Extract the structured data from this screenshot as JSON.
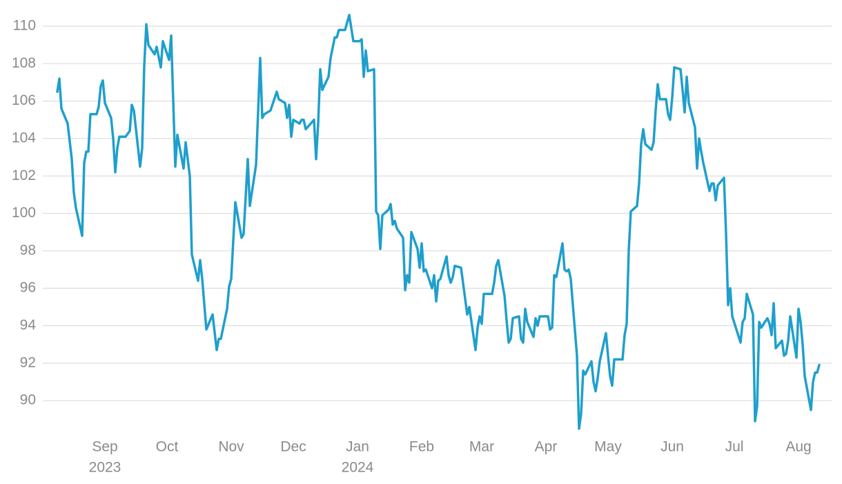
{
  "chart_data": {
    "type": "line",
    "color": "#1f9fcc",
    "grid": true,
    "ylim": [
      88.3,
      110.8
    ],
    "yticks": [
      90,
      92,
      94,
      96,
      98,
      100,
      102,
      104,
      106,
      108,
      110
    ],
    "xlim": [
      "2023-08-07",
      "2024-08-13"
    ],
    "xticks": [
      {
        "value": "2023-09-01",
        "label": "Sep"
      },
      {
        "value": "2023-10-01",
        "label": "Oct"
      },
      {
        "value": "2023-11-01",
        "label": "Nov"
      },
      {
        "value": "2023-12-01",
        "label": "Dec"
      },
      {
        "value": "2024-01-01",
        "label": "Jan"
      },
      {
        "value": "2024-02-01",
        "label": "Feb"
      },
      {
        "value": "2024-03-01",
        "label": "Mar"
      },
      {
        "value": "2024-04-01",
        "label": "Apr"
      },
      {
        "value": "2024-05-01",
        "label": "May"
      },
      {
        "value": "2024-06-01",
        "label": "Jun"
      },
      {
        "value": "2024-07-01",
        "label": "Jul"
      },
      {
        "value": "2024-08-01",
        "label": "Aug"
      }
    ],
    "xtick_years": [
      {
        "value": "2023-09-01",
        "label": "2023"
      },
      {
        "value": "2024-01-01",
        "label": "2024"
      }
    ],
    "x": [
      "2023-08-09",
      "2023-08-10",
      "2023-08-11",
      "2023-08-14",
      "2023-08-16",
      "2023-08-17",
      "2023-08-18",
      "2023-08-21",
      "2023-08-22",
      "2023-08-23",
      "2023-08-24",
      "2023-08-25",
      "2023-08-28",
      "2023-08-29",
      "2023-08-30",
      "2023-08-31",
      "2023-09-01",
      "2023-09-04",
      "2023-09-05",
      "2023-09-06",
      "2023-09-07",
      "2023-09-08",
      "2023-09-11",
      "2023-09-13",
      "2023-09-14",
      "2023-09-15",
      "2023-09-18",
      "2023-09-19",
      "2023-09-20",
      "2023-09-21",
      "2023-09-22",
      "2023-09-25",
      "2023-09-26",
      "2023-09-28",
      "2023-09-29",
      "2023-10-02",
      "2023-10-03",
      "2023-10-05",
      "2023-10-06",
      "2023-10-09",
      "2023-10-10",
      "2023-10-12",
      "2023-10-13",
      "2023-10-16",
      "2023-10-17",
      "2023-10-18",
      "2023-10-20",
      "2023-10-23",
      "2023-10-25",
      "2023-10-26",
      "2023-10-27",
      "2023-10-30",
      "2023-10-31",
      "2023-11-01",
      "2023-11-03",
      "2023-11-06",
      "2023-11-07",
      "2023-11-09",
      "2023-11-10",
      "2023-11-13",
      "2023-11-15",
      "2023-11-16",
      "2023-11-17",
      "2023-11-20",
      "2023-11-23",
      "2023-11-24",
      "2023-11-27",
      "2023-11-28",
      "2023-11-29",
      "2023-11-30",
      "2023-12-01",
      "2023-12-04",
      "2023-12-05",
      "2023-12-06",
      "2023-12-07",
      "2023-12-11",
      "2023-12-12",
      "2023-12-13",
      "2023-12-14",
      "2023-12-15",
      "2023-12-18",
      "2023-12-19",
      "2023-12-21",
      "2023-12-22",
      "2023-12-23",
      "2023-12-26",
      "2023-12-28",
      "2023-12-30",
      "2024-01-02",
      "2024-01-03",
      "2024-01-04",
      "2024-01-05",
      "2024-01-06",
      "2024-01-09",
      "2024-01-10",
      "2024-01-11",
      "2024-01-12",
      "2024-01-13",
      "2024-01-16",
      "2024-01-17",
      "2024-01-18",
      "2024-01-19",
      "2024-01-20",
      "2024-01-23",
      "2024-01-24",
      "2024-01-25",
      "2024-01-26",
      "2024-01-27",
      "2024-01-30",
      "2024-01-31",
      "2024-02-01",
      "2024-02-02",
      "2024-02-03",
      "2024-02-06",
      "2024-02-07",
      "2024-02-08",
      "2024-02-09",
      "2024-02-10",
      "2024-02-13",
      "2024-02-14",
      "2024-02-15",
      "2024-02-16",
      "2024-02-17",
      "2024-02-20",
      "2024-02-23",
      "2024-02-24",
      "2024-02-27",
      "2024-02-28",
      "2024-02-29",
      "2024-03-01",
      "2024-03-02",
      "2024-03-05",
      "2024-03-06",
      "2024-03-07",
      "2024-03-08",
      "2024-03-09",
      "2024-03-12",
      "2024-03-13",
      "2024-03-14",
      "2024-03-15",
      "2024-03-16",
      "2024-03-19",
      "2024-03-20",
      "2024-03-21",
      "2024-03-22",
      "2024-03-23",
      "2024-03-26",
      "2024-03-27",
      "2024-03-28",
      "2024-03-29",
      "2024-04-02",
      "2024-04-03",
      "2024-04-04",
      "2024-04-05",
      "2024-04-06",
      "2024-04-09",
      "2024-04-10",
      "2024-04-11",
      "2024-04-12",
      "2024-04-13",
      "2024-04-16",
      "2024-04-17",
      "2024-04-18",
      "2024-04-19",
      "2024-04-20",
      "2024-04-23",
      "2024-04-24",
      "2024-04-25",
      "2024-04-26",
      "2024-04-27",
      "2024-04-30",
      "2024-05-01",
      "2024-05-02",
      "2024-05-03",
      "2024-05-04",
      "2024-05-07",
      "2024-05-08",
      "2024-05-09",
      "2024-05-10",
      "2024-05-11",
      "2024-05-12",
      "2024-05-15",
      "2024-05-16",
      "2024-05-17",
      "2024-05-18",
      "2024-05-19",
      "2024-05-22",
      "2024-05-23",
      "2024-05-24",
      "2024-05-25",
      "2024-05-26",
      "2024-05-29",
      "2024-05-30",
      "2024-05-31",
      "2024-06-01",
      "2024-06-02",
      "2024-06-05",
      "2024-06-06",
      "2024-06-07",
      "2024-06-08",
      "2024-06-09",
      "2024-06-12",
      "2024-06-13",
      "2024-06-14",
      "2024-06-15",
      "2024-06-16",
      "2024-06-19",
      "2024-06-20",
      "2024-06-21",
      "2024-06-22",
      "2024-06-23",
      "2024-06-26",
      "2024-06-27",
      "2024-06-28",
      "2024-06-29",
      "2024-06-30",
      "2024-07-04",
      "2024-07-05",
      "2024-07-06",
      "2024-07-07",
      "2024-07-10",
      "2024-07-11",
      "2024-07-12",
      "2024-07-13",
      "2024-07-14",
      "2024-07-17",
      "2024-07-18",
      "2024-07-19",
      "2024-07-20",
      "2024-07-21",
      "2024-07-24",
      "2024-07-25",
      "2024-07-26",
      "2024-07-27",
      "2024-07-28",
      "2024-07-31",
      "2024-08-01",
      "2024-08-02",
      "2024-08-03",
      "2024-08-04",
      "2024-08-07",
      "2024-08-08",
      "2024-08-09",
      "2024-08-10",
      "2024-08-11"
    ],
    "values": [
      106.5,
      107.2,
      105.6,
      104.8,
      102.9,
      101.1,
      100.3,
      98.8,
      102.7,
      103.3,
      103.3,
      105.3,
      105.3,
      105.7,
      106.8,
      107.1,
      105.9,
      105.1,
      104.0,
      102.2,
      103.5,
      104.1,
      104.1,
      104.4,
      105.8,
      105.5,
      102.5,
      103.5,
      107.9,
      110.1,
      109.0,
      108.5,
      108.9,
      107.8,
      109.2,
      108.2,
      109.5,
      102.5,
      104.2,
      102.4,
      103.8,
      102.0,
      97.8,
      96.4,
      97.5,
      96.5,
      93.8,
      94.6,
      92.7,
      93.3,
      93.3,
      94.9,
      96.1,
      96.5,
      100.6,
      98.7,
      98.9,
      102.9,
      100.4,
      102.6,
      108.3,
      105.1,
      105.3,
      105.5,
      106.5,
      106.1,
      105.9,
      105.1,
      105.8,
      104.1,
      105.0,
      104.8,
      105.0,
      105.0,
      104.5,
      105.0,
      102.9,
      104.8,
      107.7,
      106.6,
      107.3,
      108.3,
      109.4,
      109.4,
      109.8,
      109.8,
      110.6,
      109.2,
      109.2,
      109.3,
      107.3,
      108.7,
      107.6,
      107.7,
      100.1,
      99.9,
      98.1,
      99.9,
      100.2,
      100.5,
      99.4,
      99.6,
      99.2,
      98.7,
      95.9,
      96.7,
      96.3,
      99.0,
      98.1,
      97.1,
      98.4,
      96.9,
      97.0,
      96.0,
      96.7,
      95.3,
      96.4,
      96.5,
      97.7,
      96.7,
      96.3,
      96.6,
      97.2,
      97.1,
      94.6,
      95.0,
      92.7,
      93.9,
      94.5,
      94.1,
      95.7,
      95.7,
      95.7,
      96.3,
      97.2,
      97.5,
      95.6,
      94.3,
      93.1,
      93.3,
      94.4,
      94.5,
      93.3,
      93.1,
      94.9,
      94.2,
      93.4,
      94.4,
      94.0,
      94.5,
      94.5,
      93.8,
      93.9,
      96.7,
      96.6,
      98.4,
      97.0,
      96.9,
      97.0,
      96.5,
      92.4,
      88.5,
      89.3,
      91.6,
      91.4,
      92.1,
      91.0,
      90.5,
      91.2,
      92.1,
      93.6,
      92.4,
      91.3,
      90.8,
      92.2,
      92.2,
      92.2,
      93.5,
      94.1,
      98.0,
      100.1,
      100.4,
      101.6,
      103.7,
      104.5,
      103.7,
      103.4,
      103.8,
      105.5,
      106.9,
      106.1,
      106.1,
      105.3,
      105.0,
      106.2,
      107.8,
      107.7,
      106.6,
      105.4,
      107.3,
      105.9,
      104.6,
      102.4,
      104.0,
      103.3,
      102.7,
      101.2,
      101.6,
      101.6,
      100.7,
      101.5,
      101.9,
      98.9,
      95.1,
      96.0,
      94.5,
      93.1,
      94.2,
      94.4,
      95.7,
      94.6,
      88.9,
      89.7,
      94.2,
      93.9,
      94.4,
      94.1,
      93.5,
      95.2,
      92.8,
      93.2,
      92.4,
      92.5,
      93.2,
      94.5,
      92.3,
      94.9,
      94.2,
      93.0,
      91.3,
      89.5,
      91.0,
      91.5,
      91.5,
      91.9
    ]
  }
}
